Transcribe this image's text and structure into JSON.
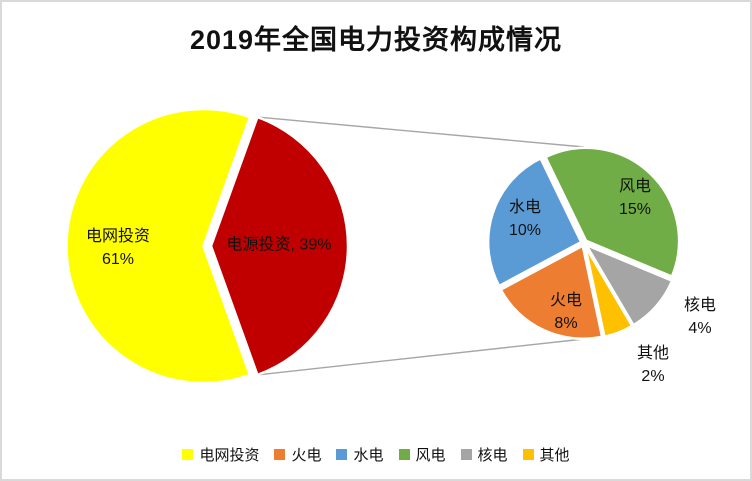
{
  "title": "2019年全国电力投资构成情况",
  "colors": {
    "grid": "#FFFF00",
    "source": "#C00000",
    "fire": "#ED7D31",
    "hydro": "#5B9BD5",
    "wind": "#70AD47",
    "nuclear": "#A5A5A5",
    "other": "#FFC000",
    "connector": "#A6A6A6",
    "border": "#D9D9D9",
    "label_text": "#111111"
  },
  "chart_data": {
    "type": "pie",
    "subtype": "pie-of-pie",
    "title": "2019年全国电力投资构成情况",
    "main_pie": {
      "slices": [
        {
          "label": "电网投资",
          "value_pct": 61,
          "color_key": "grid"
        },
        {
          "label": "电源投资",
          "value_pct": 39,
          "color_key": "source"
        }
      ]
    },
    "secondary_pie": {
      "parent_slice": "电源投资",
      "total_pct": 39,
      "slices": [
        {
          "label": "火电",
          "value_pct": 8,
          "color_key": "fire"
        },
        {
          "label": "水电",
          "value_pct": 10,
          "color_key": "hydro"
        },
        {
          "label": "风电",
          "value_pct": 15,
          "color_key": "wind"
        },
        {
          "label": "核电",
          "value_pct": 4,
          "color_key": "nuclear"
        },
        {
          "label": "其他",
          "value_pct": 2,
          "color_key": "other"
        }
      ]
    },
    "legend_position": "bottom",
    "connector_lines": true
  },
  "labels": {
    "grid_line1": "电网投资",
    "grid_line2": "61%",
    "source_combined": "电源投资, 39%",
    "hydro_line1": "水电",
    "hydro_line2": "10%",
    "wind_line1": "风电",
    "wind_line2": "15%",
    "fire_line1": "火电",
    "fire_line2": "8%",
    "nuclear_line1": "核电",
    "nuclear_line2": "4%",
    "other_line1": "其他",
    "other_line2": "2%"
  },
  "legend": {
    "items": [
      {
        "label": "电网投资",
        "color_key": "grid"
      },
      {
        "label": "火电",
        "color_key": "fire"
      },
      {
        "label": "水电",
        "color_key": "hydro"
      },
      {
        "label": "风电",
        "color_key": "wind"
      },
      {
        "label": "核电",
        "color_key": "nuclear"
      },
      {
        "label": "其他",
        "color_key": "other"
      }
    ]
  }
}
